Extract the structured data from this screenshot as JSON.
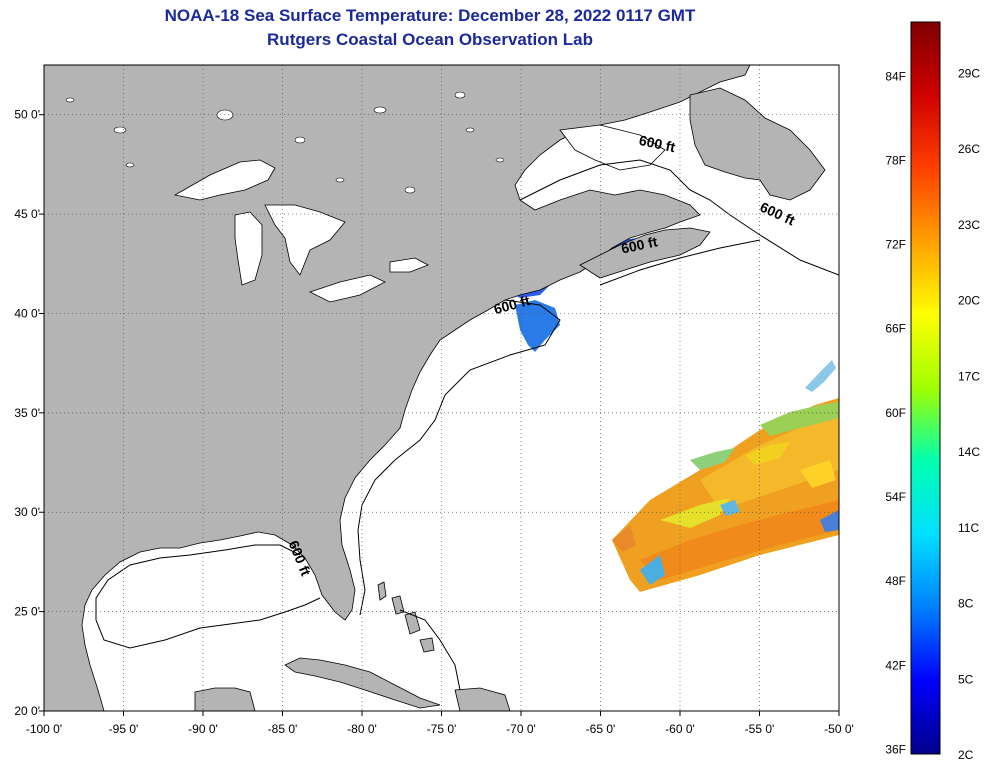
{
  "title": {
    "line1": "NOAA-18 Sea Surface Temperature:  December 28, 2022 0117 GMT",
    "line2": "Rutgers Coastal Ocean Observation Lab"
  },
  "map": {
    "lon_range": [
      -100,
      -50
    ],
    "lat_range": [
      20,
      52.5
    ],
    "lon_ticks": [
      {
        "value": -100,
        "label": "-100 0'"
      },
      {
        "value": -95,
        "label": "-95 0'"
      },
      {
        "value": -90,
        "label": "-90 0'"
      },
      {
        "value": -85,
        "label": "-85 0'"
      },
      {
        "value": -80,
        "label": "-80 0'"
      },
      {
        "value": -75,
        "label": "-75 0'"
      },
      {
        "value": -70,
        "label": "-70 0'"
      },
      {
        "value": -65,
        "label": "-65 0'"
      },
      {
        "value": -60,
        "label": "-60 0'"
      },
      {
        "value": -55,
        "label": "-55 0'"
      },
      {
        "value": -50,
        "label": "-50 0'"
      }
    ],
    "lat_ticks": [
      {
        "value": 20,
        "label": "20 0'"
      },
      {
        "value": 25,
        "label": "25 0'"
      },
      {
        "value": 30,
        "label": "30 0'"
      },
      {
        "value": 35,
        "label": "35 0'"
      },
      {
        "value": 40,
        "label": "40 0'"
      },
      {
        "value": 45,
        "label": "45 0'"
      },
      {
        "value": 50,
        "label": "50 0'"
      }
    ],
    "contour_label": "600 ft",
    "contour_labels": [
      {
        "text": "600 ft",
        "lon": -61.5,
        "lat": 48.3,
        "angle": 12
      },
      {
        "text": "600 ft",
        "lon": -54,
        "lat": 44.8,
        "angle": 25
      },
      {
        "text": "600 ft",
        "lon": -62.5,
        "lat": 43.2,
        "angle": -12
      },
      {
        "text": "600 ft",
        "lon": -70.5,
        "lat": 40.2,
        "angle": -15
      },
      {
        "text": "600 ft",
        "lon": -84.2,
        "lat": 27.6,
        "angle": 68
      }
    ],
    "land_color": "#b4b4b4",
    "ocean_color": "#ffffff",
    "grid": "dotted"
  },
  "colorbar": {
    "fahrenheit": [
      {
        "value": 84,
        "label": "84F"
      },
      {
        "value": 78,
        "label": "78F"
      },
      {
        "value": 72,
        "label": "72F"
      },
      {
        "value": 66,
        "label": "66F"
      },
      {
        "value": 60,
        "label": "60F"
      },
      {
        "value": 54,
        "label": "54F"
      },
      {
        "value": 48,
        "label": "48F"
      },
      {
        "value": 42,
        "label": "42F"
      },
      {
        "value": 36,
        "label": "36F"
      }
    ],
    "celsius": [
      {
        "value": 29,
        "label": "29C"
      },
      {
        "value": 26,
        "label": "26C"
      },
      {
        "value": 23,
        "label": "23C"
      },
      {
        "value": 20,
        "label": "20C"
      },
      {
        "value": 17,
        "label": "17C"
      },
      {
        "value": 14,
        "label": "14C"
      },
      {
        "value": 11,
        "label": "11C"
      },
      {
        "value": 8,
        "label": "8C"
      },
      {
        "value": 5,
        "label": "5C"
      },
      {
        "value": 2,
        "label": "2C"
      }
    ],
    "range_c": [
      2,
      31
    ],
    "colors": [
      "#00008b",
      "#0000ff",
      "#0080ff",
      "#00e0ff",
      "#00ffb0",
      "#a0ff00",
      "#ffff00",
      "#ffa000",
      "#ff4000",
      "#d00000",
      "#800000"
    ]
  }
}
